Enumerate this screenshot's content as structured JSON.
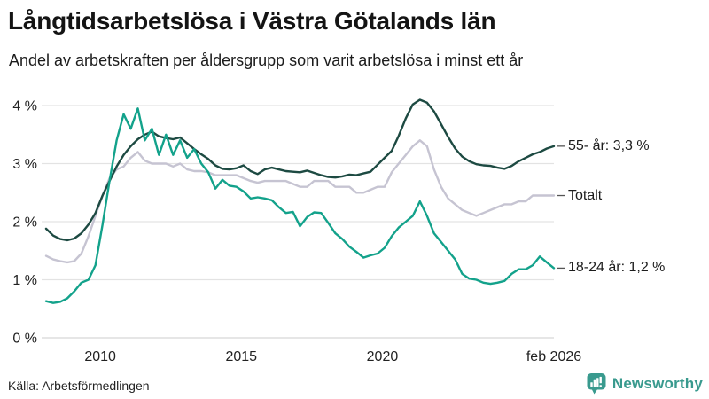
{
  "header": {
    "title": "Långtidsarbetslösa i Västra Götalands län",
    "subtitle": "Andel av arbetskraften per åldersgrupp som varit arbetslösa i minst ett år"
  },
  "chart_data": {
    "type": "line",
    "title": "Långtidsarbetslösa i Västra Götalands län",
    "ylabel": "Andel av arbetskraften (%)",
    "xlabel": "",
    "unit": "%",
    "grid": "horizontal",
    "legend_position": "right-of-line-ends",
    "x_domain": [
      2008.08,
      2026.08
    ],
    "x_step": 0.25,
    "ylim": [
      0,
      4.4
    ],
    "x_ticks": [
      {
        "value": 2010,
        "label": "2010"
      },
      {
        "value": 2015,
        "label": "2015"
      },
      {
        "value": 2020,
        "label": "2020"
      },
      {
        "value": 2026.08,
        "label": "feb 2026"
      }
    ],
    "y_ticks": [
      {
        "value": 0,
        "label": "0 %"
      },
      {
        "value": 1,
        "label": "1 %"
      },
      {
        "value": 2,
        "label": "2 %"
      },
      {
        "value": 3,
        "label": "3 %"
      },
      {
        "value": 4,
        "label": "4 %"
      }
    ],
    "series": [
      {
        "name": "Totalt",
        "label": "Totalt",
        "color": "#c6c4d2",
        "values": [
          1.41,
          1.35,
          1.32,
          1.3,
          1.32,
          1.45,
          1.75,
          2.1,
          2.45,
          2.75,
          2.9,
          2.95,
          3.1,
          3.2,
          3.05,
          3.0,
          3.0,
          3.0,
          2.95,
          3.0,
          2.9,
          2.87,
          2.87,
          2.85,
          2.8,
          2.8,
          2.8,
          2.8,
          2.75,
          2.7,
          2.67,
          2.7,
          2.7,
          2.7,
          2.7,
          2.65,
          2.6,
          2.6,
          2.7,
          2.7,
          2.7,
          2.6,
          2.6,
          2.6,
          2.5,
          2.5,
          2.55,
          2.6,
          2.6,
          2.85,
          3.0,
          3.15,
          3.3,
          3.4,
          3.3,
          2.9,
          2.6,
          2.4,
          2.3,
          2.2,
          2.15,
          2.1,
          2.15,
          2.2,
          2.25,
          2.3,
          2.3,
          2.35,
          2.35,
          2.45,
          2.45,
          2.45,
          2.45
        ]
      },
      {
        "name": "55- år",
        "label": "55- år: 3,3 %",
        "latest_value": "3,3 %",
        "color": "#1d4a42",
        "values": [
          1.88,
          1.76,
          1.7,
          1.68,
          1.71,
          1.8,
          1.95,
          2.15,
          2.45,
          2.7,
          2.95,
          3.15,
          3.3,
          3.42,
          3.5,
          3.55,
          3.47,
          3.44,
          3.42,
          3.45,
          3.35,
          3.25,
          3.16,
          3.08,
          2.97,
          2.91,
          2.9,
          2.92,
          2.97,
          2.87,
          2.82,
          2.9,
          2.93,
          2.9,
          2.87,
          2.86,
          2.85,
          2.88,
          2.84,
          2.8,
          2.77,
          2.76,
          2.78,
          2.81,
          2.8,
          2.83,
          2.86,
          2.98,
          3.1,
          3.22,
          3.48,
          3.78,
          4.02,
          4.1,
          4.05,
          3.9,
          3.68,
          3.46,
          3.26,
          3.12,
          3.04,
          2.99,
          2.97,
          2.96,
          2.93,
          2.91,
          2.96,
          3.04,
          3.1,
          3.16,
          3.2,
          3.26,
          3.3
        ]
      },
      {
        "name": "18-24 år",
        "label": "18-24 år: 1,2 %",
        "latest_value": "1,2 %",
        "color": "#13a28b",
        "values": [
          0.63,
          0.6,
          0.62,
          0.68,
          0.8,
          0.95,
          1.0,
          1.25,
          1.95,
          2.7,
          3.4,
          3.85,
          3.6,
          3.95,
          3.4,
          3.6,
          3.15,
          3.5,
          3.15,
          3.4,
          3.1,
          3.25,
          3.0,
          2.85,
          2.57,
          2.72,
          2.62,
          2.6,
          2.52,
          2.4,
          2.42,
          2.4,
          2.37,
          2.25,
          2.15,
          2.17,
          1.92,
          2.08,
          2.16,
          2.15,
          1.98,
          1.8,
          1.7,
          1.57,
          1.48,
          1.38,
          1.42,
          1.45,
          1.55,
          1.75,
          1.9,
          2.0,
          2.1,
          2.35,
          2.1,
          1.8,
          1.65,
          1.5,
          1.35,
          1.1,
          1.02,
          1.0,
          0.95,
          0.93,
          0.95,
          0.98,
          1.1,
          1.18,
          1.18,
          1.25,
          1.4,
          1.3,
          1.2
        ]
      }
    ]
  },
  "colors": {
    "grid": "#e3e3e3",
    "grid_zero": "#d6d6d6",
    "tick_text": "#222222",
    "leader_dash": "#555555",
    "brand_teal": "#399a8e"
  },
  "footer": {
    "source": "Källa: Arbetsförmedlingen",
    "brand": "Newsworthy"
  }
}
